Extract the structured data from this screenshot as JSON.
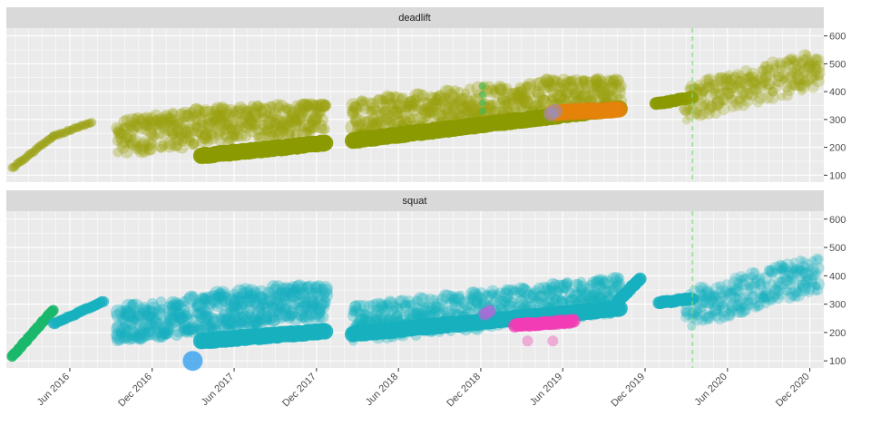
{
  "chart_data": {
    "type": "scatter",
    "facets": [
      "deadlift",
      "squat"
    ],
    "x_ticks": [
      "Jun 2016",
      "Dec 2016",
      "Jun 2017",
      "Dec 2017",
      "Jun 2018",
      "Dec 2018",
      "Jun 2019",
      "Dec 2019",
      "Jun 2020",
      "Dec 2020"
    ],
    "xlim": [
      "2016-01-12",
      "2021-01-01"
    ],
    "y_ticks": [
      100,
      200,
      300,
      400,
      500,
      600
    ],
    "ylim": [
      75,
      628
    ],
    "grid": true,
    "reference_line_x": "2020-03-15",
    "series": {
      "deadlift": [
        {
          "segments": [
            [
              "2016-01-25",
              125,
              "2016-04-25",
              240
            ],
            [
              "2016-04-25",
              240,
              "2016-07-20",
              290
            ]
          ],
          "color": "#9aa00f",
          "opacity": 0.45,
          "r": 5
        },
        {
          "band": [
            "2016-09-15",
            120,
            "2017-12-20",
            350
          ],
          "trend": [
            "2016-09-15",
            240,
            "2017-12-20",
            320
          ],
          "color": "#9aa00f",
          "opacity": 0.33,
          "r": 6.5
        },
        {
          "segments": [
            [
              "2017-03-20",
              170,
              "2017-12-20",
              215
            ]
          ],
          "color": "#8a9a00",
          "opacity": 0.95,
          "r": 9
        },
        {
          "band": [
            "2018-02-20",
            180,
            "2019-10-05",
            440
          ],
          "trend": [
            "2018-02-20",
            300,
            "2019-10-05",
            410
          ],
          "color": "#9aa00f",
          "opacity": 0.33,
          "r": 6.5
        },
        {
          "segments": [
            [
              "2018-02-20",
              225,
              "2019-10-05",
              340
            ]
          ],
          "color": "#8a9a00",
          "opacity": 0.95,
          "r": 9
        },
        {
          "points": [
            [
              "2018-12-05",
              330
            ],
            [
              "2018-12-05",
              360
            ],
            [
              "2018-12-05",
              390
            ],
            [
              "2018-12-05",
              420
            ]
          ],
          "color": "#3dbb55",
          "opacity": 0.6,
          "r": 4
        },
        {
          "segments": [
            [
              "2019-05-10",
              325,
              "2019-10-05",
              335
            ]
          ],
          "color": "#e6820a",
          "opacity": 0.7,
          "r": 9
        },
        {
          "points": [
            [
              "2019-05-05",
              320
            ],
            [
              "2019-05-15",
              330
            ]
          ],
          "color": "#8f8fd0",
          "opacity": 0.55,
          "r": 8
        },
        {
          "segments": [
            [
              "2019-12-25",
              355,
              "2020-03-15",
              380
            ]
          ],
          "color": "#8a9a00",
          "opacity": 0.9,
          "r": 7
        },
        {
          "band": [
            "2020-03-01",
            190,
            "2020-12-20",
            590
          ],
          "trend": [
            "2020-03-01",
            360,
            "2020-12-20",
            480
          ],
          "color": "#9aa00f",
          "opacity": 0.28,
          "r": 6
        }
      ],
      "squat": [
        {
          "segments": [
            [
              "2016-01-25",
              115,
              "2016-04-25",
              280
            ]
          ],
          "color": "#1bb86a",
          "opacity": 0.9,
          "r": 6
        },
        {
          "segments": [
            [
              "2016-04-25",
              230,
              "2016-08-15",
              310
            ]
          ],
          "color": "#17b0bf",
          "opacity": 0.7,
          "r": 6
        },
        {
          "band": [
            "2016-09-15",
            120,
            "2017-12-20",
            360
          ],
          "trend": [
            "2016-09-15",
            230,
            "2017-12-20",
            320
          ],
          "color": "#17b0bf",
          "opacity": 0.35,
          "r": 7
        },
        {
          "segments": [
            [
              "2017-03-20",
              170,
              "2017-12-20",
              205
            ]
          ],
          "color": "#17b0bf",
          "opacity": 0.9,
          "r": 9
        },
        {
          "points": [
            [
              "2017-03-01",
              100
            ]
          ],
          "color": "#4aa9f0",
          "opacity": 0.9,
          "r": 11
        },
        {
          "band": [
            "2018-02-20",
            90,
            "2019-10-05",
            420
          ],
          "trend": [
            "2018-02-20",
            230,
            "2019-10-05",
            330
          ],
          "color": "#17b0bf",
          "opacity": 0.32,
          "r": 6.5
        },
        {
          "segments": [
            [
              "2018-02-20",
              195,
              "2019-10-05",
              285
            ]
          ],
          "color": "#17b0bf",
          "opacity": 0.9,
          "r": 9
        },
        {
          "points": [
            [
              "2018-12-10",
              265
            ],
            [
              "2018-12-20",
              275
            ]
          ],
          "color": "#b368d8",
          "opacity": 0.75,
          "r": 7
        },
        {
          "segments": [
            [
              "2019-02-15",
              225,
              "2019-06-25",
              240
            ]
          ],
          "color": "#f23cb5",
          "opacity": 0.75,
          "r": 7.5
        },
        {
          "points": [
            [
              "2019-03-15",
              170
            ],
            [
              "2019-05-10",
              170
            ]
          ],
          "color": "#f06ec0",
          "opacity": 0.5,
          "r": 6
        },
        {
          "segments": [
            [
              "2019-10-01",
              310,
              "2019-11-20",
              390
            ]
          ],
          "color": "#17b0bf",
          "opacity": 0.85,
          "r": 7
        },
        {
          "segments": [
            [
              "2020-01-01",
              305,
              "2020-03-15",
              320
            ]
          ],
          "color": "#17b0bf",
          "opacity": 0.85,
          "r": 7
        },
        {
          "band": [
            "2020-03-01",
            170,
            "2020-12-20",
            480
          ],
          "trend": [
            "2020-03-01",
            280,
            "2020-12-20",
            410
          ],
          "color": "#17b0bf",
          "opacity": 0.28,
          "r": 6
        }
      ]
    }
  }
}
